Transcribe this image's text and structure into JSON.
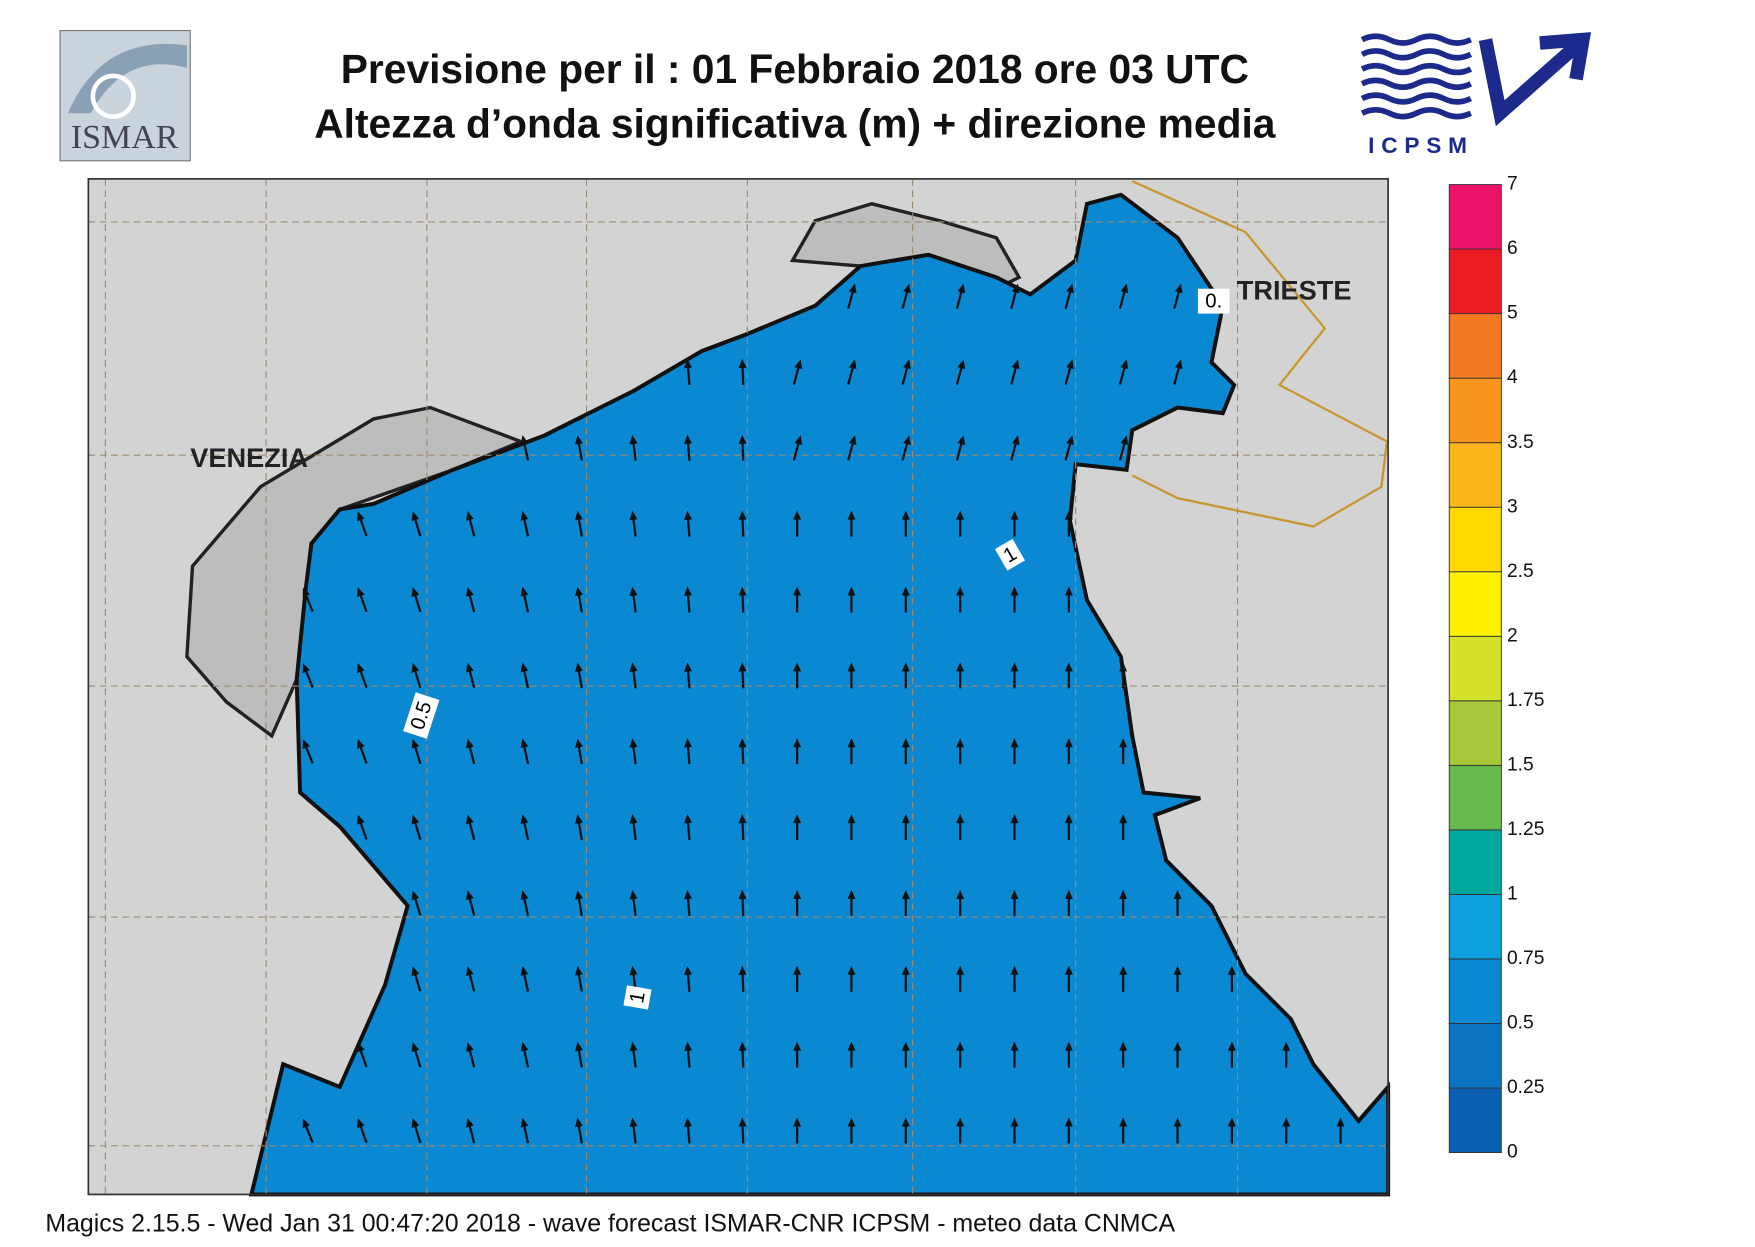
{
  "header": {
    "title_line1": "Previsione per il  :  01  Febbraio 2018   ore 03 UTC",
    "title_line2": "Altezza d’onda significativa (m) + direzione media",
    "logo_left": "ISMAR",
    "logo_right": "ICPSM"
  },
  "map": {
    "places": [
      "VENEZIA",
      "TRIESTE"
    ],
    "contour_labels": [
      "0.5",
      "1",
      "1",
      "0."
    ]
  },
  "legend": {
    "levels": [
      0,
      0.25,
      0.5,
      0.75,
      1,
      1.25,
      1.5,
      1.75,
      2,
      2.5,
      3,
      3.5,
      4,
      5,
      6,
      7
    ],
    "colors": [
      "#0b5fb3",
      "#0a73c2",
      "#0a88d2",
      "#0fa0e0",
      "#00a99d",
      "#68ba4c",
      "#a8c93a",
      "#d6e12a",
      "#fff200",
      "#ffd900",
      "#fbb61a",
      "#f7951d",
      "#f47a22",
      "#ec1c24",
      "#ec1268"
    ]
  },
  "footer": "Magics 2.15.5 - Wed Jan 31 00:47:20 2018 - wave forecast  ISMAR-CNR  ICPSM - meteo data   CNMCA"
}
